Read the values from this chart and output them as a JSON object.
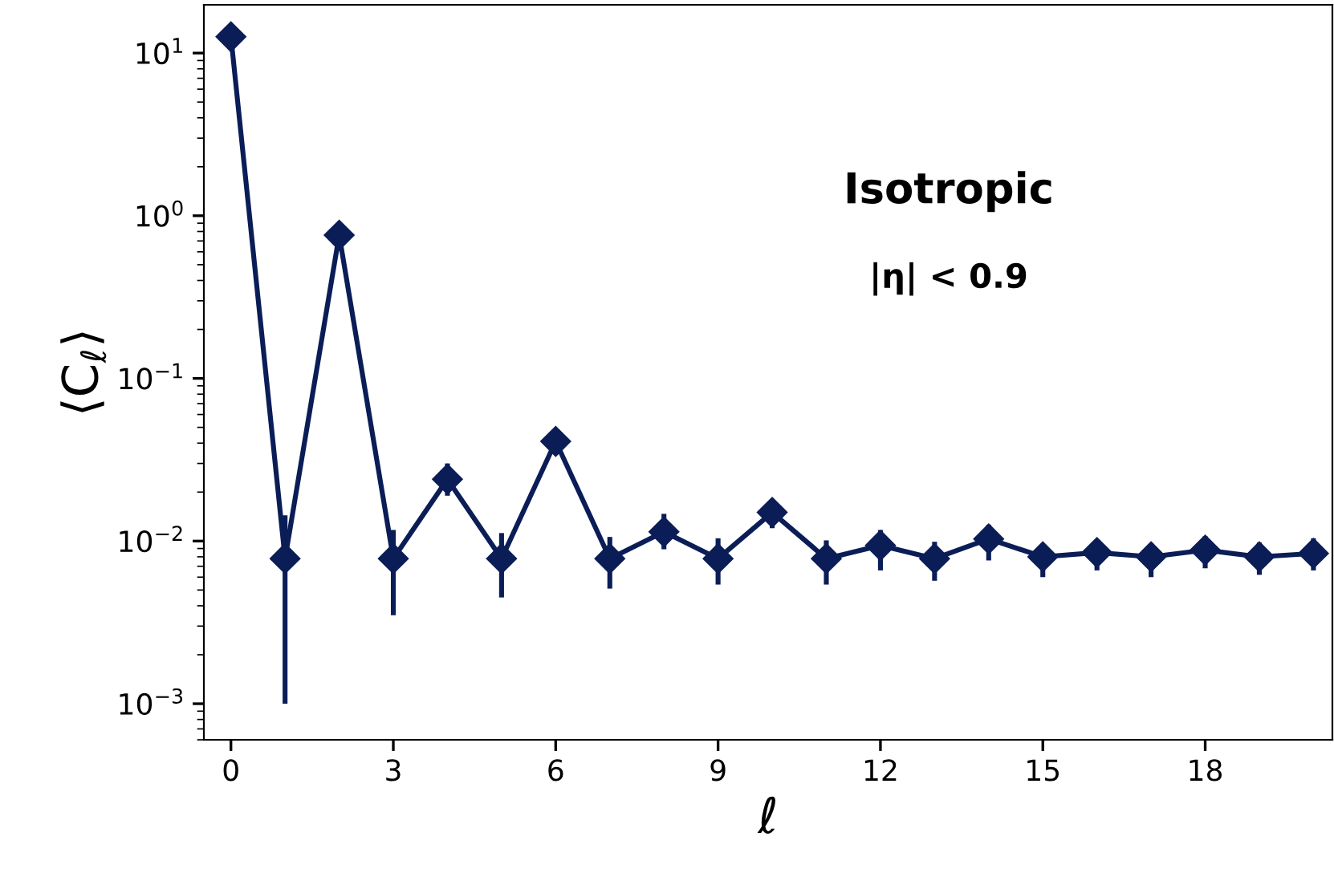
{
  "chart_data": {
    "type": "line",
    "xlabel": "ℓ",
    "ylabel": "⟨C$_{ℓ}$⟩",
    "annotations": [
      "Isotropic",
      "|η| < 0.9"
    ],
    "x": [
      0,
      1,
      2,
      3,
      4,
      5,
      6,
      7,
      8,
      9,
      10,
      11,
      12,
      13,
      14,
      15,
      16,
      17,
      18,
      19,
      20
    ],
    "series": [
      {
        "color": "#0b1d57",
        "values": [
          12.6,
          0.0078,
          0.76,
          0.0078,
          0.024,
          0.0078,
          0.041,
          0.0078,
          0.0114,
          0.0078,
          0.015,
          0.0078,
          0.0094,
          0.0078,
          0.0103,
          0.008,
          0.0085,
          0.008,
          0.0088,
          0.008,
          0.0084
        ],
        "errors": [
          null,
          [
            0.001,
            0.0144
          ],
          null,
          [
            0.0035,
            0.0117
          ],
          [
            0.019,
            0.03
          ],
          [
            0.0045,
            0.0112
          ],
          null,
          [
            0.0051,
            0.0106
          ],
          [
            0.0089,
            0.0147
          ],
          [
            0.0054,
            0.0104
          ],
          [
            0.012,
            0.0176
          ],
          [
            0.0054,
            0.0101
          ],
          [
            0.0066,
            0.0117
          ],
          [
            0.0057,
            0.0099
          ],
          [
            0.0076,
            0.0126
          ],
          [
            0.006,
            0.0094
          ],
          [
            0.0066,
            0.0102
          ],
          [
            0.006,
            0.0097
          ],
          [
            0.0068,
            0.0107
          ],
          [
            0.0062,
            0.0098
          ],
          [
            0.0066,
            0.0104
          ]
        ]
      }
    ],
    "log": "y",
    "marker": "diamond",
    "line_style": "solid",
    "grid": false,
    "legend": false,
    "xlim": [
      -0.5,
      20.35
    ],
    "ylim": [
      0.0006,
      19.8
    ],
    "xticks": [
      0,
      3,
      6,
      9,
      12,
      15,
      18
    ],
    "yticks": [
      {
        "value": 0.001,
        "label": "10$^{−3}$"
      },
      {
        "value": 0.01,
        "label": "10$^{−2}$"
      },
      {
        "value": 0.1,
        "label": "10$^{−1}$"
      },
      {
        "value": 1,
        "label": "10$^{0}$"
      },
      {
        "value": 10,
        "label": "10$^{1}$"
      }
    ]
  }
}
